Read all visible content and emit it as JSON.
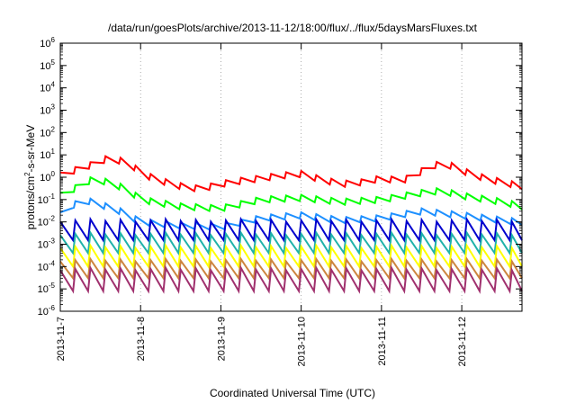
{
  "chart_data": {
    "type": "line",
    "title": "/data/run/goesPlots/archive/2013-11-12/18:00/flux/../flux/5daysMarsFluxes.txt",
    "xlabel": "Coordinated Universal Time (UTC)",
    "ylabel": "protons/cm²-s-sr-MeV",
    "ylabel_parts": {
      "a": "protons/cm",
      "sup": "2",
      "b": "-s-sr-MeV"
    },
    "y_scale": "log",
    "ylim": [
      1e-06,
      1000000.0
    ],
    "xlim": [
      "2013-11-07 00:00",
      "2013-11-12 18:00"
    ],
    "grid": true,
    "x_ticks": [
      "2013-11-7",
      "2013-11-8",
      "2013-11-9",
      "2013-11-10",
      "2013-11-11",
      "2013-11-12"
    ],
    "y_ticks": [
      {
        "base": "10",
        "exp": "-6",
        "value": 1e-06
      },
      {
        "base": "10",
        "exp": "-5",
        "value": 1e-05
      },
      {
        "base": "10",
        "exp": "-4",
        "value": 0.0001
      },
      {
        "base": "10",
        "exp": "-3",
        "value": 0.001
      },
      {
        "base": "10",
        "exp": "-2",
        "value": 0.01
      },
      {
        "base": "10",
        "exp": "-1",
        "value": 0.1
      },
      {
        "base": "10",
        "exp": "0",
        "value": 1
      },
      {
        "base": "10",
        "exp": "1",
        "value": 10
      },
      {
        "base": "10",
        "exp": "2",
        "value": 100
      },
      {
        "base": "10",
        "exp": "3",
        "value": 1000
      },
      {
        "base": "10",
        "exp": "4",
        "value": 10000
      },
      {
        "base": "10",
        "exp": "5",
        "value": 100000
      },
      {
        "base": "10",
        "exp": "6",
        "value": 1000000
      }
    ],
    "series": [
      {
        "color": "#ff0000",
        "x": [
          "2013-11-07 00:00",
          "2013-11-07 03:00",
          "2013-11-07 06:00",
          "2013-11-07 09:00",
          "2013-11-07 12:00",
          "2013-11-07 14:00",
          "2013-11-07 16:00",
          "2013-11-07 18:00",
          "2013-11-07 21:00",
          "2013-11-08 00:00",
          "2013-11-08 06:00",
          "2013-11-08 12:00",
          "2013-11-08 18:00",
          "2013-11-09 00:00",
          "2013-11-09 06:00",
          "2013-11-09 12:00",
          "2013-11-09 18:00",
          "2013-11-10 00:00",
          "2013-11-10 06:00",
          "2013-11-10 12:00",
          "2013-11-10 18:00",
          "2013-11-11 00:00",
          "2013-11-11 06:00",
          "2013-11-11 10:00",
          "2013-11-11 14:00",
          "2013-11-11 18:00",
          "2013-11-11 22:00",
          "2013-11-12 00:00",
          "2013-11-12 06:00",
          "2013-11-12 12:00",
          "2013-11-12 18:00"
        ],
        "y": [
          1.2,
          1.8,
          2.5,
          3.5,
          5,
          7,
          6,
          5.5,
          4,
          1.5,
          0.7,
          0.4,
          0.3,
          0.5,
          0.7,
          0.9,
          1.2,
          1.4,
          0.8,
          0.5,
          0.6,
          0.9,
          0.7,
          1.2,
          3,
          4,
          3,
          2,
          1,
          0.6,
          0.4
        ]
      },
      {
        "color": "#00ff00",
        "x": [
          "2013-11-07 00:00",
          "2013-11-07 04:00",
          "2013-11-07 08:00",
          "2013-11-07 10:00",
          "2013-11-07 14:00",
          "2013-11-07 20:00",
          "2013-11-08 00:00",
          "2013-11-08 12:00",
          "2013-11-09 00:00",
          "2013-11-09 12:00",
          "2013-11-10 00:00",
          "2013-11-10 12:00",
          "2013-11-11 00:00",
          "2013-11-11 12:00",
          "2013-11-11 18:00",
          "2013-11-12 00:00",
          "2013-11-12 12:00",
          "2013-11-12 18:00"
        ],
        "y": [
          0.15,
          0.3,
          0.6,
          0.9,
          0.6,
          0.3,
          0.1,
          0.05,
          0.04,
          0.1,
          0.12,
          0.08,
          0.1,
          0.2,
          0.25,
          0.15,
          0.08,
          0.05
        ]
      },
      {
        "color": "#1e90ff",
        "x": [
          "2013-11-07 00:00",
          "2013-11-07 04:00",
          "2013-11-07 08:00",
          "2013-11-07 12:00",
          "2013-11-07 18:00",
          "2013-11-08 00:00",
          "2013-11-08 12:00",
          "2013-11-09 00:00",
          "2013-11-09 12:00",
          "2013-11-10 00:00",
          "2013-11-10 12:00",
          "2013-11-11 00:00",
          "2013-11-11 12:00",
          "2013-11-12 00:00",
          "2013-11-12 12:00",
          "2013-11-12 18:00"
        ],
        "y": [
          0.02,
          0.06,
          0.09,
          0.06,
          0.03,
          0.01,
          0.007,
          0.006,
          0.015,
          0.02,
          0.012,
          0.015,
          0.03,
          0.02,
          0.012,
          0.01
        ]
      },
      {
        "color": "#0000cd",
        "x": [
          "2013-11-07 00:00",
          "2013-11-08 00:00",
          "2013-11-09 00:00",
          "2013-11-10 00:00",
          "2013-11-11 00:00",
          "2013-11-12 00:00",
          "2013-11-12 18:00"
        ],
        "y": [
          0.003,
          0.003,
          0.003,
          0.003,
          0.003,
          0.003,
          0.003
        ]
      },
      {
        "color": "#20b2aa",
        "x": [
          "2013-11-07 00:00",
          "2013-11-08 00:00",
          "2013-11-09 00:00",
          "2013-11-10 00:00",
          "2013-11-11 00:00",
          "2013-11-12 00:00",
          "2013-11-12 18:00"
        ],
        "y": [
          0.0008,
          0.0008,
          0.0008,
          0.0008,
          0.0008,
          0.0008,
          0.0008
        ]
      },
      {
        "color": "#ffff00",
        "x": [
          "2013-11-07 00:00",
          "2013-11-08 00:00",
          "2013-11-09 00:00",
          "2013-11-10 00:00",
          "2013-11-11 00:00",
          "2013-11-12 00:00",
          "2013-11-12 18:00"
        ],
        "y": [
          0.0002,
          0.0002,
          0.0002,
          0.0002,
          0.0002,
          0.0002,
          0.0002
        ]
      },
      {
        "color": "#cd853f",
        "x": [
          "2013-11-07 00:00",
          "2013-11-08 00:00",
          "2013-11-09 00:00",
          "2013-11-10 00:00",
          "2013-11-11 00:00",
          "2013-11-12 00:00",
          "2013-11-12 18:00"
        ],
        "y": [
          7e-05,
          7e-05,
          7e-05,
          7e-05,
          7e-05,
          7e-05,
          7e-05
        ]
      },
      {
        "color": "#a0306e",
        "x": [
          "2013-11-07 00:00",
          "2013-11-08 00:00",
          "2013-11-09 00:00",
          "2013-11-10 00:00",
          "2013-11-11 00:00",
          "2013-11-12 00:00",
          "2013-11-12 18:00"
        ],
        "y": [
          1e-05,
          1e-05,
          1e-05,
          1e-05,
          1e-05,
          1e-05,
          1e-05
        ]
      }
    ],
    "band_structure": {
      "note_period_hours": 4.5,
      "bands": [
        {
          "series": 3,
          "low": 0.0015,
          "high": 0.012
        },
        {
          "series": 4,
          "low": 0.0004,
          "high": 0.003
        },
        {
          "series": 5,
          "low": 0.0001,
          "high": 0.0008
        },
        {
          "series": 6,
          "low": 3e-05,
          "high": 0.0002
        },
        {
          "series": 7,
          "low": 8e-06,
          "high": 8e-05
        }
      ]
    }
  }
}
